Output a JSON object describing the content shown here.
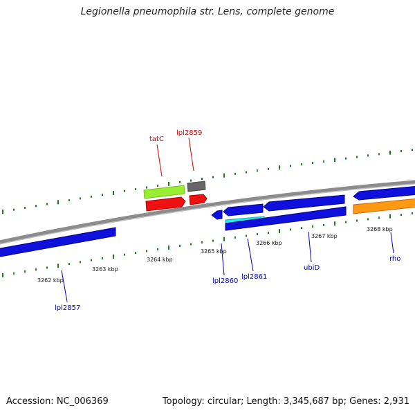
{
  "title": "Legionella pneumophila str. Lens, complete genome",
  "footer": {
    "accession": "Accession: NC_006369",
    "summary": "Topology: circular; Length: 3,345,687 bp; Genes: 2,931"
  },
  "colors": {
    "backbone": "#8c8c8c",
    "tick": "#1a7a1a",
    "plus_label": "#cc0000",
    "minus_label": "#0000aa",
    "blue": "#1010dd",
    "green": "#99ee33",
    "red": "#ee1111",
    "gray": "#666666",
    "cyan": "#22eeee",
    "orange": "#ff9911"
  },
  "scale_labels": [
    "3262 kbp",
    "3263 kbp",
    "3264 kbp",
    "3265 kbp",
    "3266 kbp",
    "3267 kbp",
    "3268 kbp"
  ],
  "gene_labels": {
    "tatC": "tatC",
    "lpl2859": "lpl2859",
    "lpl2857": "lpl2857",
    "lpl2860": "lpl2860",
    "lpl2861": "lpl2861",
    "ubiD": "ubiD",
    "rho": "rho"
  },
  "features": [
    {
      "name": "lpl2857",
      "strand": "minus",
      "color": "blue"
    },
    {
      "name": "tatC",
      "strand": "plus",
      "color": "green"
    },
    {
      "name": "tatC-red",
      "strand": "plus",
      "color": "red"
    },
    {
      "name": "lpl2859",
      "strand": "plus",
      "color": "gray"
    },
    {
      "name": "lpl2859-red",
      "strand": "plus",
      "color": "red"
    },
    {
      "name": "lpl2860",
      "strand": "minus",
      "color": "blue"
    },
    {
      "name": "lpl2861",
      "strand": "minus",
      "color": "blue"
    },
    {
      "name": "lpl2861-cyan",
      "strand": "minus",
      "color": "cyan"
    },
    {
      "name": "ubiD",
      "strand": "minus",
      "color": "blue"
    },
    {
      "name": "ubiD-blue",
      "strand": "minus",
      "color": "blue"
    },
    {
      "name": "rho",
      "strand": "minus",
      "color": "blue"
    },
    {
      "name": "rho-orange",
      "strand": "minus",
      "color": "orange"
    }
  ]
}
